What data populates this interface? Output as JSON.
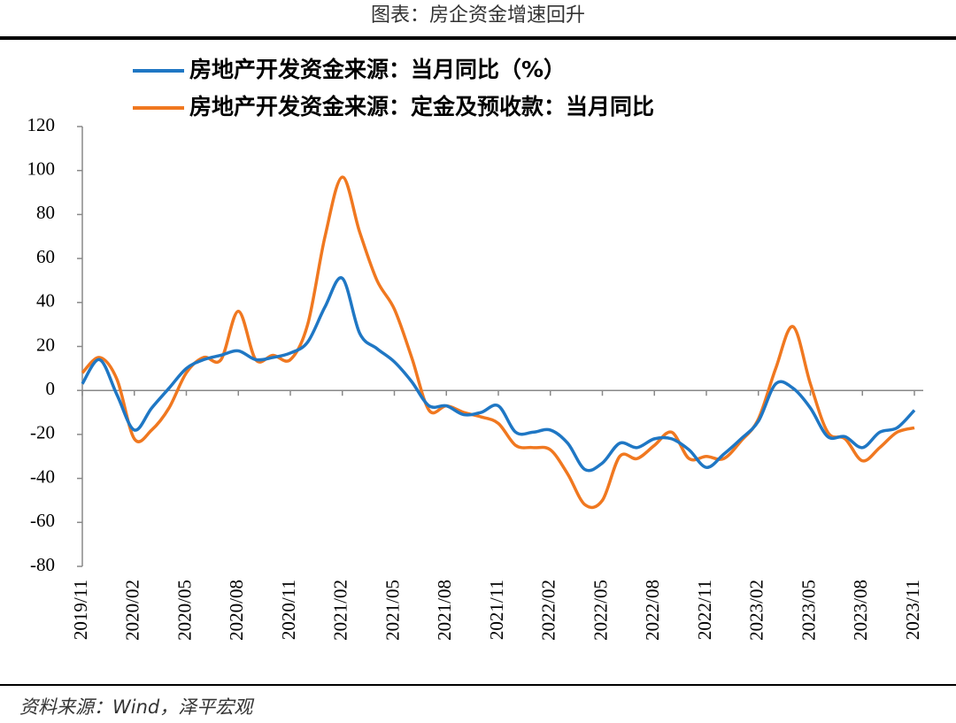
{
  "chart_data": {
    "type": "line",
    "title": "图表：房企资金增速回升",
    "source": "资料来源：Wind，泽平宏观",
    "categories": [
      "2019/11",
      null,
      null,
      "2020/02",
      null,
      null,
      "2020/05",
      null,
      null,
      "2020/08",
      null,
      null,
      "2020/11",
      null,
      null,
      "2021/02",
      null,
      null,
      "2021/05",
      null,
      null,
      "2021/08",
      null,
      null,
      "2021/11",
      null,
      null,
      "2022/02",
      null,
      null,
      "2022/05",
      null,
      null,
      "2022/08",
      null,
      null,
      "2022/11",
      null,
      null,
      "2023/02",
      null,
      null,
      "2023/05",
      null,
      null,
      "2023/08",
      null,
      null,
      "2023/11"
    ],
    "series": [
      {
        "name": "房地产开发资金来源：当月同比（%）",
        "color": "#1f77c4",
        "values": [
          3,
          14,
          -2,
          -18,
          -8,
          1,
          10,
          14,
          16,
          18,
          14,
          15,
          17,
          22,
          38,
          51,
          26,
          19,
          13,
          4,
          -7,
          -7,
          -11,
          -10,
          -7,
          -19,
          -19,
          -18,
          -24,
          -36,
          -33,
          -24,
          -26,
          -22,
          -22,
          -27,
          -35,
          -29,
          -22,
          -14,
          3,
          1,
          -8,
          -21,
          -21,
          -26,
          -19,
          -17,
          -9
        ]
      },
      {
        "name": "房地产开发资金来源：定金及预收款：当月同比",
        "color": "#f07820",
        "values": [
          8,
          15,
          5,
          -22,
          -18,
          -8,
          8,
          15,
          14,
          36,
          14,
          16,
          14,
          30,
          70,
          97,
          72,
          50,
          37,
          15,
          -9,
          -7,
          -10,
          -12,
          -15,
          -25,
          -26,
          -27,
          -38,
          -52,
          -50,
          -30,
          -31,
          -25,
          -19,
          -31,
          -30,
          -31,
          -23,
          -13,
          10,
          29,
          3,
          -19,
          -22,
          -32,
          -26,
          -19,
          -17
        ]
      }
    ],
    "ylim": [
      -80,
      120
    ],
    "yticks": [
      -80,
      -60,
      -40,
      -20,
      0,
      20,
      40,
      60,
      80,
      100,
      120
    ]
  }
}
